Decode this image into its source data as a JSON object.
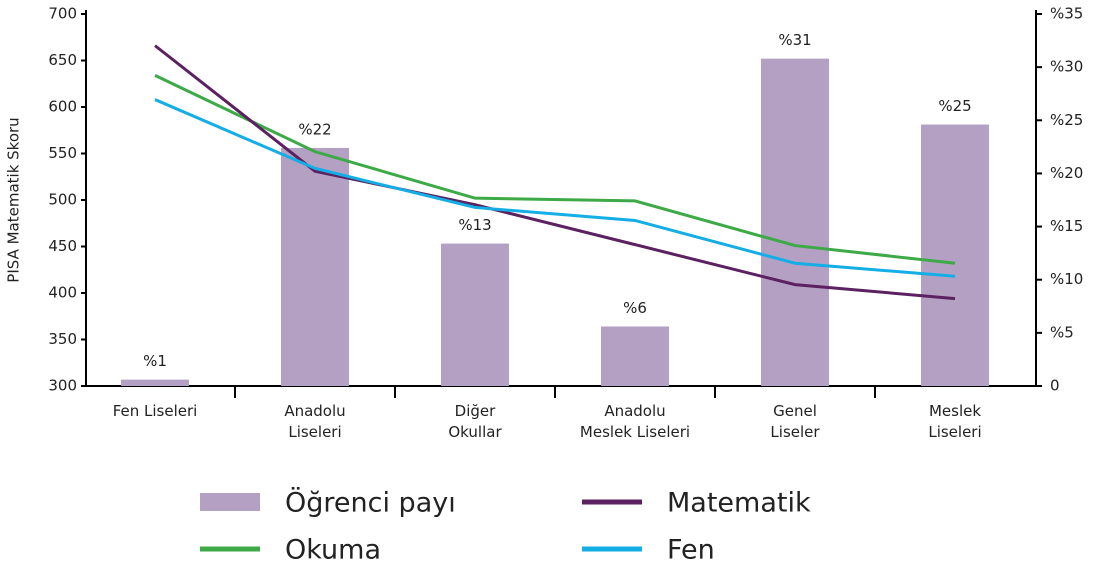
{
  "chart_data": {
    "type": "bar_line",
    "y_label": "PISA Matematik Skoru",
    "categories": [
      "Fen Liseleri",
      "Anadolu\nLiseleri",
      "Diğer\nOkullar",
      "Anadolu\nMeslek Liseleri",
      "Genel\nLiseler",
      "Meslek\nLiseleri"
    ],
    "series": [
      {
        "name": "Öğrenci payı",
        "color": "#b3a0c2",
        "kind": "bar",
        "axis": "y2",
        "values": [
          0.6,
          22.4,
          13.4,
          5.6,
          30.8,
          24.6
        ],
        "value_labels": [
          "%1",
          "%22",
          "%13",
          "%6",
          "%31",
          "%25"
        ]
      },
      {
        "name": "Okuma",
        "color": "#3daa47",
        "kind": "line",
        "values": [
          634,
          552,
          502,
          499,
          451,
          432
        ]
      },
      {
        "name": "Matematik",
        "color": "#5b2160",
        "kind": "line",
        "values": [
          666,
          531,
          495,
          452,
          409,
          394
        ]
      },
      {
        "name": "Fen",
        "color": "#14aee6",
        "kind": "line",
        "values": [
          608,
          534,
          492,
          478,
          432,
          418
        ]
      }
    ],
    "ylim": [
      300,
      700
    ],
    "yticks": [
      300,
      350,
      400,
      450,
      500,
      550,
      600,
      650,
      700
    ],
    "y2lim": [
      0,
      35
    ],
    "y2ticks": [
      0,
      {
        "value": 5,
        "label": "%5"
      },
      {
        "value": 10,
        "label": "%10"
      },
      {
        "value": 15,
        "label": "%15"
      },
      {
        "value": 20,
        "label": "%20"
      },
      {
        "value": 25,
        "label": "%25"
      },
      {
        "value": 30,
        "label": "%30"
      },
      {
        "value": 35,
        "label": "%35"
      }
    ]
  }
}
